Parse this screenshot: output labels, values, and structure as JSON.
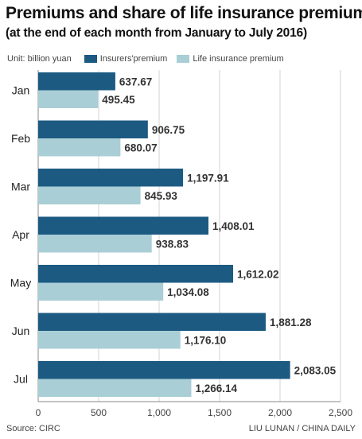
{
  "header": {
    "title": "Premiums and share of life insurance premiums",
    "subtitle": "(at the end of each month from January to July 2016)"
  },
  "legend": {
    "unit": "Unit: billion yuan",
    "items": [
      {
        "label": "Insurers'premium",
        "color": "#1c5a82"
      },
      {
        "label": "Life insurance premium",
        "color": "#a9ced5"
      }
    ]
  },
  "footer": {
    "source": "Source: CIRC",
    "credit": "LIU LUNAN / CHINA DAILY"
  },
  "chart_data": {
    "type": "bar",
    "orientation": "horizontal",
    "categories": [
      "Jan",
      "Feb",
      "Mar",
      "Apr",
      "May",
      "Jun",
      "Jul"
    ],
    "series": [
      {
        "name": "Insurers'premium",
        "color": "#1c5a82",
        "values": [
          637.67,
          906.75,
          1197.91,
          1408.01,
          1612.02,
          1881.28,
          2083.05
        ],
        "labels": [
          "637.67",
          "906.75",
          "1,197.91",
          "1,408.01",
          "1,612.02",
          "1,881.28",
          "2,083.05"
        ]
      },
      {
        "name": "Life insurance premium",
        "color": "#a9ced5",
        "values": [
          495.45,
          680.07,
          845.93,
          938.83,
          1034.08,
          1176.1,
          1266.14
        ],
        "labels": [
          "495.45",
          "680.07",
          "845.93",
          "938.83",
          "1,034.08",
          "1,176.10",
          "1,266.14"
        ]
      }
    ],
    "xlim": [
      0,
      2500
    ],
    "xticks": [
      0,
      500,
      1000,
      1500,
      2000,
      2500
    ],
    "xtick_labels": [
      "0",
      "500",
      "1,000",
      "1,500",
      "2,000",
      "2,500"
    ],
    "grid": true
  }
}
